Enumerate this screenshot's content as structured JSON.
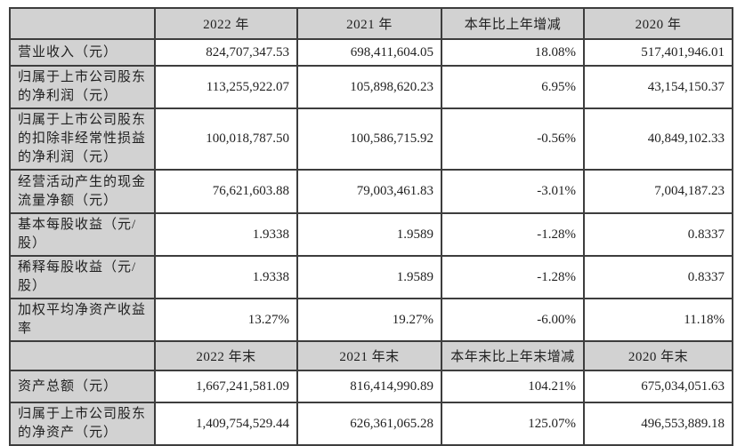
{
  "colors": {
    "header_bg": "#d2d2d2",
    "label_bg": "#d2d2d2",
    "cell_bg": "#ffffff",
    "border": "#3d3d3d",
    "text": "#1f1f1f"
  },
  "table": {
    "annual": {
      "corner": "",
      "columns": [
        "2022 年",
        "2021 年",
        "本年比上年增减",
        "2020 年"
      ],
      "rows": [
        {
          "label": "营业收入（元）",
          "values": [
            "824,707,347.53",
            "698,411,604.05",
            "18.08%",
            "517,401,946.01"
          ]
        },
        {
          "label": "归属于上市公司股东\n的净利润（元）",
          "values": [
            "113,255,922.07",
            "105,898,620.23",
            "6.95%",
            "43,154,150.37"
          ]
        },
        {
          "label": "归属于上市公司股东\n的扣除非经常性损益\n的净利润（元）",
          "values": [
            "100,018,787.50",
            "100,586,715.92",
            "-0.56%",
            "40,849,102.33"
          ]
        },
        {
          "label": "经营活动产生的现金\n流量净额（元）",
          "values": [
            "76,621,603.88",
            "79,003,461.83",
            "-3.01%",
            "7,004,187.23"
          ]
        },
        {
          "label": "基本每股收益（元/\n股）",
          "values": [
            "1.9338",
            "1.9589",
            "-1.28%",
            "0.8337"
          ]
        },
        {
          "label": "稀释每股收益（元/\n股）",
          "values": [
            "1.9338",
            "1.9589",
            "-1.28%",
            "0.8337"
          ]
        },
        {
          "label": "加权平均净资产收益\n率",
          "values": [
            "13.27%",
            "19.27%",
            "-6.00%",
            "11.18%"
          ]
        }
      ]
    },
    "eoy": {
      "corner": "",
      "columns": [
        "2022 年末",
        "2021 年末",
        "本年末比上年末增减",
        "2020 年末"
      ],
      "rows": [
        {
          "label": "资产总额（元）",
          "values": [
            "1,667,241,581.09",
            "816,414,990.89",
            "104.21%",
            "675,034,051.63"
          ]
        },
        {
          "label": "归属于上市公司股东\n的净资产（元）",
          "values": [
            "1,409,754,529.44",
            "626,361,065.28",
            "125.07%",
            "496,553,889.18"
          ]
        }
      ]
    }
  }
}
